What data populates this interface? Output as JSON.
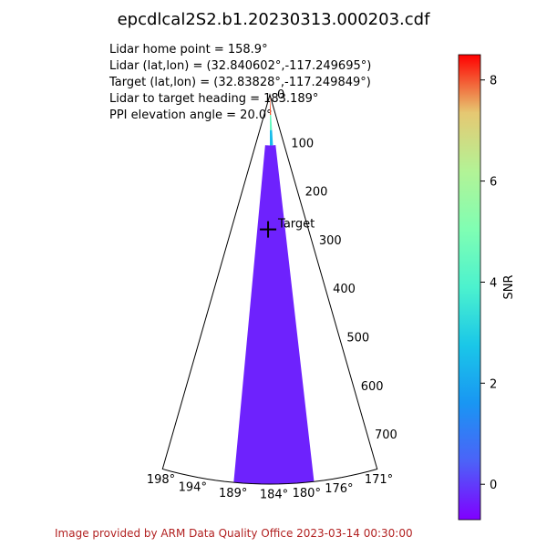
{
  "chart_data": {
    "type": "ppi_wedge",
    "title": "epcdlcal2S2.b1.20230313.000203.cdf",
    "annotations": [
      "Lidar home point = 158.9°",
      "Lidar (lat,lon) = (32.840602°,-117.249695°)",
      "Target (lat,lon) = (32.83828°,-117.249849°)",
      "Lidar to target heading = 183.189°",
      "PPI elevation angle = 20.0°"
    ],
    "azimuth_range_deg": [
      171,
      198
    ],
    "azimuth_tick_labels": [
      "198°",
      "194°",
      "189°",
      "184°",
      "180°",
      "176°",
      "171°"
    ],
    "azimuth_ticks": [
      198,
      194,
      189,
      184,
      180,
      176,
      171
    ],
    "range_ticks": [
      0,
      100,
      200,
      300,
      400,
      500,
      600,
      700
    ],
    "range_tick_labels": [
      "0",
      "100",
      "200",
      "300",
      "400",
      "500",
      "600",
      "700"
    ],
    "range_max": 770,
    "target": {
      "label": "Target",
      "range": 270,
      "azimuth_deg": 183.189
    },
    "snr_field": {
      "azimuth_range_deg": [
        179,
        189
      ],
      "range_max": 770,
      "dominant_snr": -0.3,
      "near_field": [
        {
          "range": [
            0,
            40
          ],
          "snr": 8.0
        },
        {
          "range": [
            40,
            70
          ],
          "snr": 4.5
        },
        {
          "range": [
            70,
            100
          ],
          "snr": 2.5
        }
      ]
    },
    "colorbar": {
      "label": "SNR",
      "range": [
        -0.7,
        8.5
      ],
      "ticks": [
        0,
        2,
        4,
        6,
        8
      ],
      "tick_labels": [
        "0",
        "2",
        "4",
        "6",
        "8"
      ],
      "colormap": "rainbow"
    }
  },
  "footer": "Image provided by ARM Data Quality Office 2023-03-14 00:30:00"
}
